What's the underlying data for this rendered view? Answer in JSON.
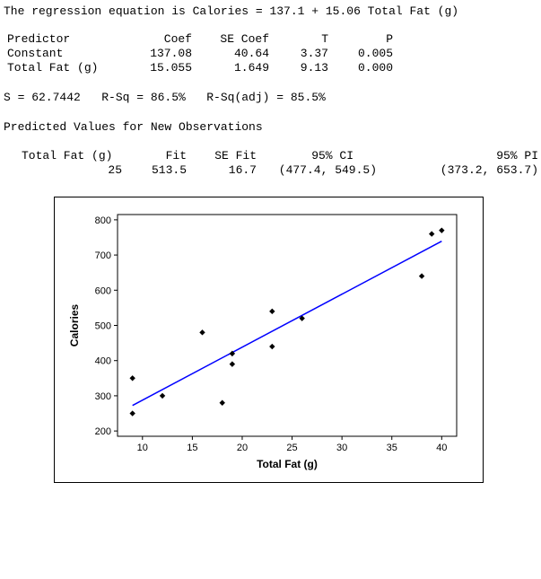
{
  "output": {
    "equation": "The regression equation is Calories = 137.1 + 15.06 Total Fat (g)",
    "coef_table": {
      "headers": [
        "Predictor",
        "Coef",
        "SE Coef",
        "T",
        "P"
      ],
      "rows": [
        [
          "Constant",
          "137.08",
          "40.64",
          "3.37",
          "0.005"
        ],
        [
          "Total Fat (g)",
          "15.055",
          "1.649",
          "9.13",
          "0.000"
        ]
      ]
    },
    "summary": "S = 62.7442   R-Sq = 86.5%   R-Sq(adj) = 85.5%",
    "predicted_title": "Predicted Values for New Observations",
    "predicted_table": {
      "headers": [
        "Total Fat (g)",
        "Fit",
        "SE Fit",
        "95% CI",
        "95% PI"
      ],
      "rows": [
        [
          "25",
          "513.5",
          "16.7",
          "(477.4, 549.5)",
          "(373.2, 653.7)"
        ]
      ]
    }
  },
  "chart_data": {
    "type": "scatter",
    "xlabel": "Total Fat (g)",
    "ylabel": "Calories",
    "xlim": [
      7.5,
      41.5
    ],
    "ylim": [
      185,
      815
    ],
    "xticks": [
      10,
      15,
      20,
      25,
      30,
      35,
      40
    ],
    "yticks": [
      200,
      300,
      400,
      500,
      600,
      700,
      800
    ],
    "points": [
      {
        "x": 9,
        "y": 350
      },
      {
        "x": 9,
        "y": 250
      },
      {
        "x": 12,
        "y": 300
      },
      {
        "x": 16,
        "y": 480
      },
      {
        "x": 18,
        "y": 280
      },
      {
        "x": 19,
        "y": 420
      },
      {
        "x": 19,
        "y": 390
      },
      {
        "x": 23,
        "y": 540
      },
      {
        "x": 23,
        "y": 440
      },
      {
        "x": 26,
        "y": 520
      },
      {
        "x": 38,
        "y": 640
      },
      {
        "x": 39,
        "y": 760
      },
      {
        "x": 40,
        "y": 770
      }
    ],
    "fit_line": {
      "intercept": 137.08,
      "slope": 15.055,
      "x_range": [
        9,
        40
      ],
      "color": "#0000ff"
    },
    "grid": false,
    "point_color": "#000000"
  }
}
